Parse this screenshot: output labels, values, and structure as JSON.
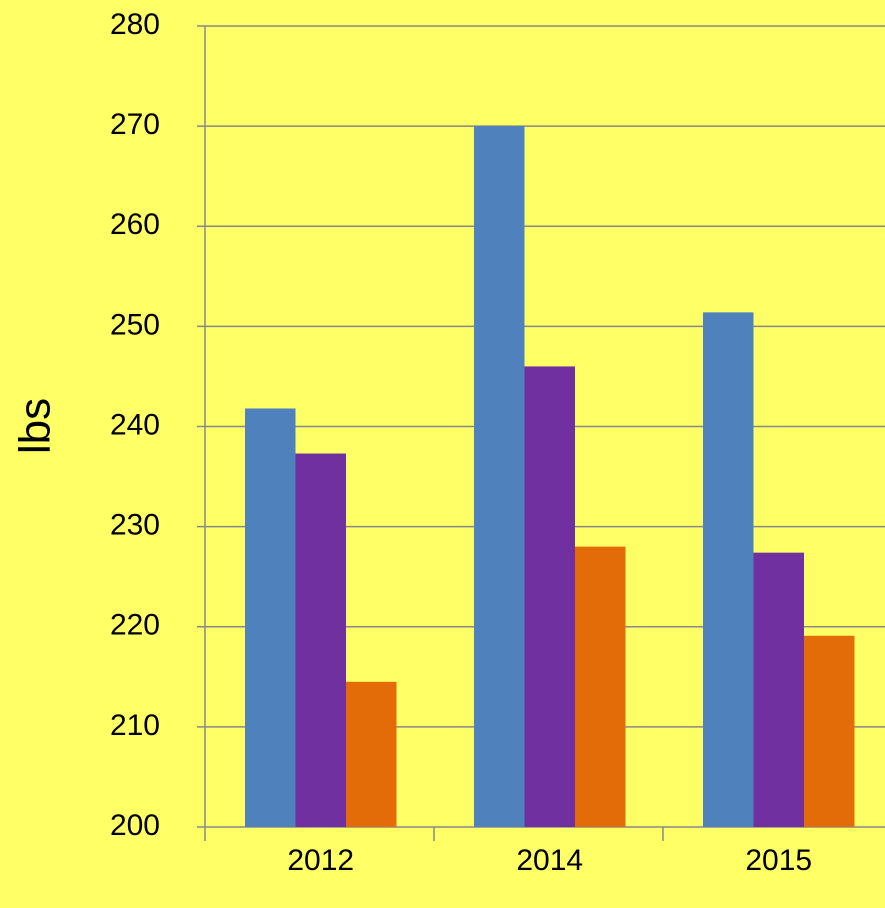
{
  "chart_data": {
    "type": "bar",
    "y_label": "lbs",
    "categories": [
      "2012",
      "2014",
      "2015"
    ],
    "series": [
      {
        "color": "#4f81bd",
        "values": [
          241.8,
          270.0,
          251.4
        ]
      },
      {
        "color": "#7030a0",
        "values": [
          237.3,
          246.0,
          227.4
        ]
      },
      {
        "color": "#e36c09",
        "values": [
          214.5,
          228.0,
          219.1
        ]
      }
    ],
    "ylim": [
      200,
      280
    ],
    "yticks": [
      200,
      210,
      220,
      230,
      240,
      250,
      260,
      270,
      280
    ],
    "grid": true,
    "background": "#ffff66"
  }
}
